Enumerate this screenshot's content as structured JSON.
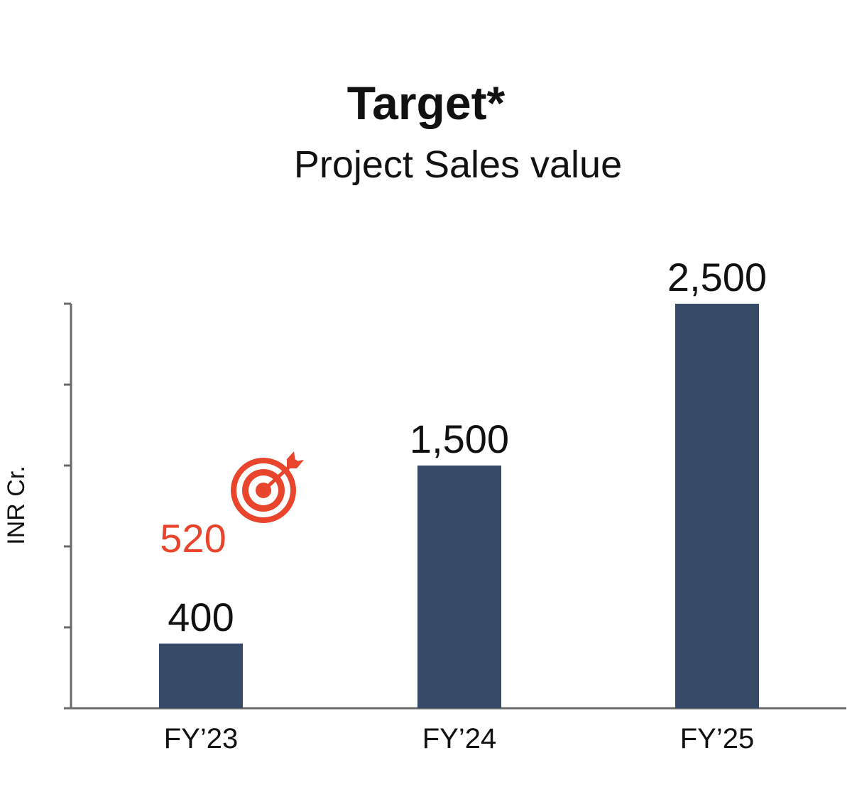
{
  "chart_data": {
    "type": "bar",
    "title": "Target*",
    "subtitle": "Project Sales value",
    "ylabel": "INR Cr.",
    "xlabel": "",
    "categories": [
      "FY’23",
      "FY’24",
      "FY’25"
    ],
    "values": [
      400,
      1500,
      2500
    ],
    "value_labels": [
      "400",
      "1,500",
      "2,500"
    ],
    "ylim": [
      0,
      2500
    ],
    "y_tick_count": 5,
    "grid": false,
    "legend": "none",
    "bar_color": "#374b69",
    "annotation": {
      "text": "520",
      "value": 520,
      "category": "FY’23",
      "icon": "target-icon",
      "color": "#e8452c"
    }
  }
}
